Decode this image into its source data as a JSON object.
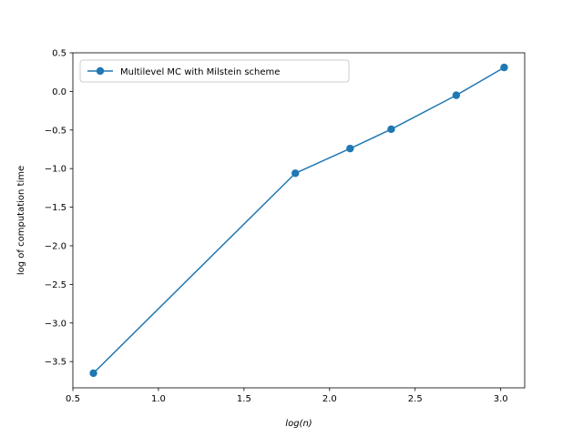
{
  "chart_data": {
    "type": "line",
    "title": "",
    "xlabel": "log(n)",
    "ylabel": "log of computation time",
    "xlim": [
      0.5,
      3.14
    ],
    "ylim": [
      -3.84,
      0.5
    ],
    "xticks": [
      0.5,
      1.0,
      1.5,
      2.0,
      2.5,
      3.0
    ],
    "xtick_labels": [
      "0.5",
      "1.0",
      "1.5",
      "2.0",
      "2.5",
      "3.0"
    ],
    "yticks": [
      0.5,
      0.0,
      -0.5,
      -1.0,
      -1.5,
      -2.0,
      -2.5,
      -3.0,
      -3.5
    ],
    "ytick_labels": [
      "0.5",
      "0.0",
      "−0.5",
      "−1.0",
      "−1.5",
      "−2.0",
      "−2.5",
      "−3.0",
      "−3.5"
    ],
    "grid": false,
    "legend_position": "top-left",
    "series": [
      {
        "name": "Multilevel MC with Milstein scheme",
        "color": "#1f77b4",
        "marker": "circle",
        "x": [
          0.62,
          1.8,
          2.12,
          2.36,
          2.74,
          3.02
        ],
        "y": [
          -3.65,
          -1.06,
          -0.74,
          -0.49,
          -0.05,
          0.31
        ]
      }
    ]
  }
}
